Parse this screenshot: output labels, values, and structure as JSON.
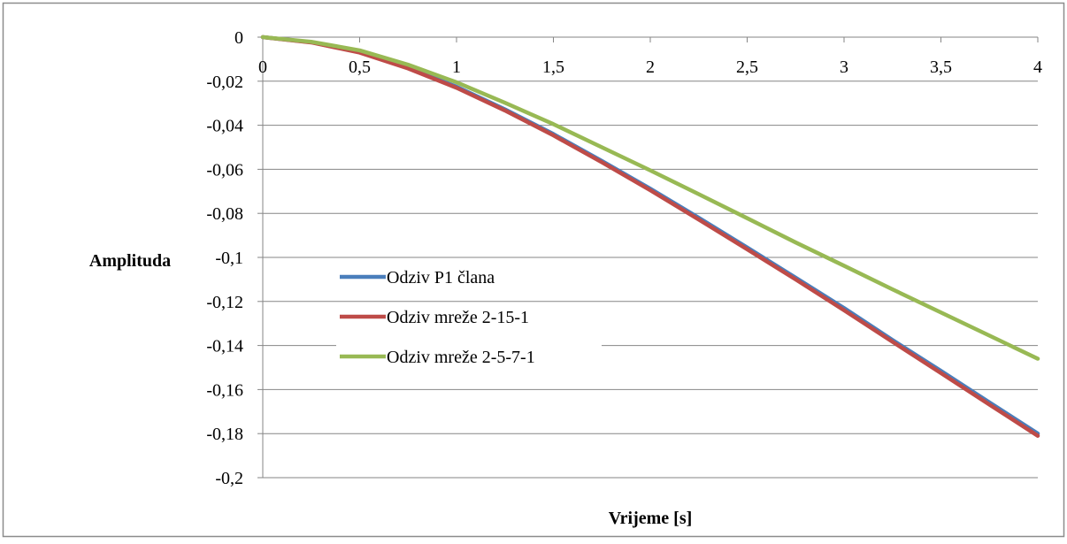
{
  "chart_data": {
    "type": "line",
    "title": "",
    "xlabel": "Vrijeme [s]",
    "ylabel": "Amplituda",
    "xlim": [
      0,
      4
    ],
    "ylim": [
      -0.2,
      0
    ],
    "x_ticks": [
      0,
      0.5,
      1,
      1.5,
      2,
      2.5,
      3,
      3.5,
      4
    ],
    "x_tick_labels": [
      "0",
      "0,5",
      "1",
      "1,5",
      "2",
      "2,5",
      "3",
      "3,5",
      "4"
    ],
    "y_ticks": [
      0,
      -0.02,
      -0.04,
      -0.06,
      -0.08,
      -0.1,
      -0.12,
      -0.14,
      -0.16,
      -0.18,
      -0.2
    ],
    "y_tick_labels": [
      "0",
      "-0,02",
      "-0,04",
      "-0,06",
      "-0,08",
      "-0,1",
      "-0,12",
      "-0,14",
      "-0,16",
      "-0,18",
      "-0,2"
    ],
    "grid": "horizontal",
    "legend_position": "center-left",
    "x": [
      0,
      0.25,
      0.5,
      0.75,
      1,
      1.25,
      1.5,
      1.75,
      2,
      2.25,
      2.5,
      2.75,
      3,
      3.25,
      3.5,
      3.75,
      4
    ],
    "series": [
      {
        "name": "Odziv P1 člana",
        "color": "#4a7ebb",
        "values": [
          0,
          -0.0023,
          -0.0068,
          -0.0139,
          -0.0225,
          -0.0328,
          -0.044,
          -0.0562,
          -0.0688,
          -0.082,
          -0.0955,
          -0.1092,
          -0.123,
          -0.1375,
          -0.1515,
          -0.1658,
          -0.18
        ]
      },
      {
        "name": "Odziv mreže 2-15-1",
        "color": "#be4b48",
        "values": [
          0,
          -0.0024,
          -0.007,
          -0.0142,
          -0.023,
          -0.0333,
          -0.0446,
          -0.0568,
          -0.0695,
          -0.0828,
          -0.0963,
          -0.11,
          -0.124,
          -0.1383,
          -0.1525,
          -0.1668,
          -0.181
        ]
      },
      {
        "name": "Odziv mreže 2-5-7-1",
        "color": "#98b954",
        "values": [
          0,
          -0.0021,
          -0.006,
          -0.0125,
          -0.0205,
          -0.0298,
          -0.0395,
          -0.05,
          -0.0605,
          -0.0713,
          -0.0822,
          -0.0932,
          -0.1038,
          -0.1145,
          -0.125,
          -0.1355,
          -0.146
        ]
      }
    ]
  }
}
